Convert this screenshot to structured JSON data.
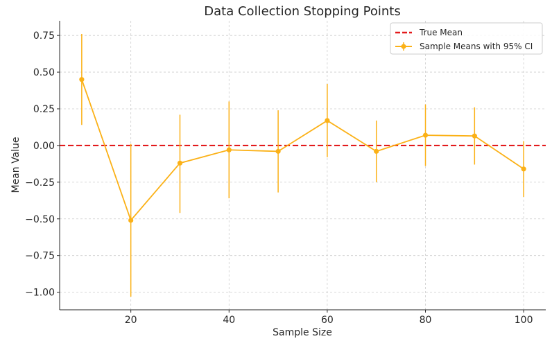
{
  "chart_data": {
    "type": "line",
    "title": "Data Collection Stopping Points",
    "xlabel": "Sample Size",
    "ylabel": "Mean Value",
    "xlim": [
      5.5,
      104.5
    ],
    "ylim": [
      -1.12,
      0.85
    ],
    "x_ticks": [
      20,
      40,
      60,
      80,
      100
    ],
    "x_tick_labels": [
      "20",
      "40",
      "60",
      "80",
      "100"
    ],
    "y_ticks": [
      -1.0,
      -0.75,
      -0.5,
      -0.25,
      0.0,
      0.25,
      0.5,
      0.75
    ],
    "y_tick_labels": [
      "−1.00",
      "−0.75",
      "−0.50",
      "−0.25",
      "0.00",
      "0.25",
      "0.50",
      "0.75"
    ],
    "grid": true,
    "legend_position": "top-right",
    "true_mean": {
      "name": "True Mean",
      "value": 0.0,
      "color": "#e31a1c",
      "style": "dashed"
    },
    "series": [
      {
        "name": "Sample Means with 95% CI",
        "color": "#fbb117",
        "x": [
          10,
          20,
          30,
          40,
          50,
          60,
          70,
          80,
          90,
          100
        ],
        "values": [
          0.45,
          -0.51,
          -0.12,
          -0.03,
          -0.04,
          0.17,
          -0.04,
          0.07,
          0.065,
          -0.16
        ],
        "ci_lower": [
          0.14,
          -1.03,
          -0.46,
          -0.36,
          -0.32,
          -0.08,
          -0.25,
          -0.14,
          -0.13,
          -0.35
        ],
        "ci_upper": [
          0.76,
          0.01,
          0.21,
          0.3,
          0.24,
          0.42,
          0.17,
          0.28,
          0.26,
          0.03
        ]
      }
    ]
  }
}
